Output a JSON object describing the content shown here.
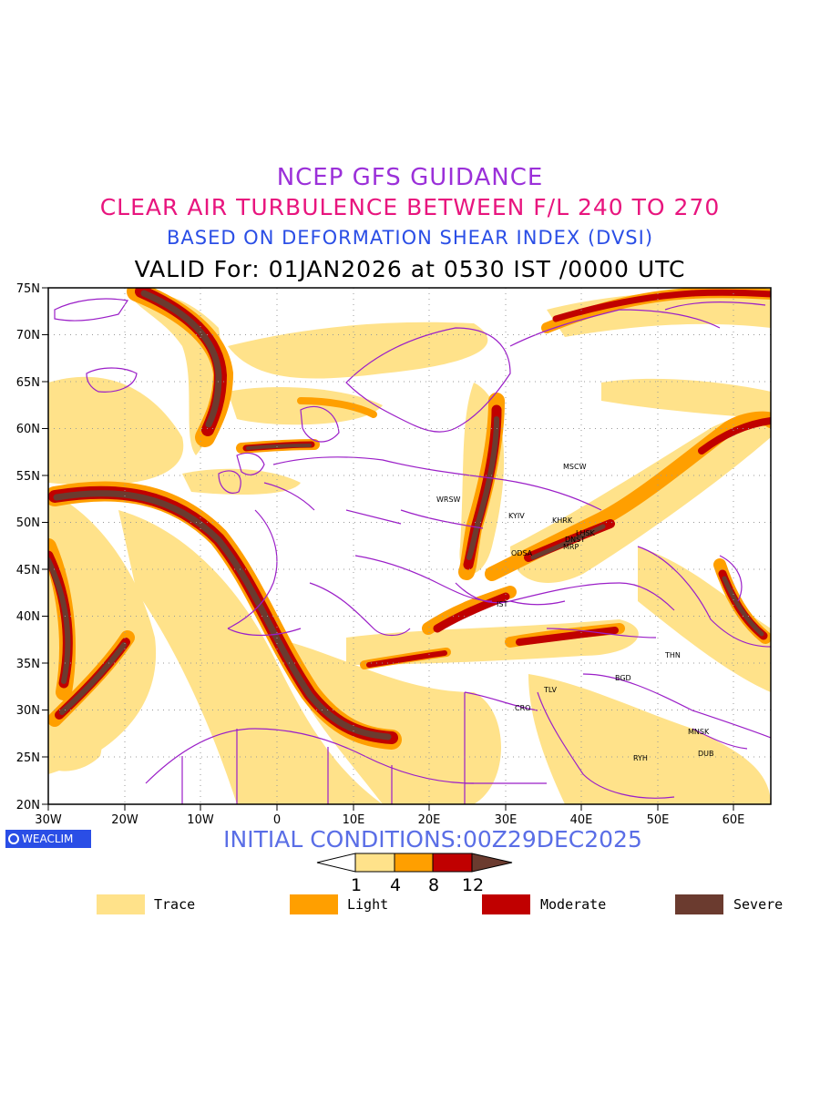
{
  "titles": {
    "line1": "NCEP GFS GUIDANCE",
    "line2": "CLEAR AIR TURBULENCE BETWEEN F/L 240 TO 270",
    "line3": "BASED ON DEFORMATION SHEAR INDEX (DVSI)",
    "line4": "VALID For: 01JAN2026 at 0530 IST /0000 UTC"
  },
  "map": {
    "lat_labels": [
      "75N",
      "70N",
      "65N",
      "60N",
      "55N",
      "50N",
      "45N",
      "40N",
      "35N",
      "30N",
      "25N",
      "20N"
    ],
    "lon_labels": [
      "30W",
      "20W",
      "10W",
      "0",
      "10E",
      "20E",
      "30E",
      "40E",
      "50E",
      "60E"
    ],
    "cities": [
      {
        "name": "MSCW"
      },
      {
        "name": "WRSW"
      },
      {
        "name": "KYIV"
      },
      {
        "name": "KHRK"
      },
      {
        "name": "LHSK"
      },
      {
        "name": "DNST"
      },
      {
        "name": "MRP"
      },
      {
        "name": "ODSA"
      },
      {
        "name": "IST"
      },
      {
        "name": "THN"
      },
      {
        "name": "BGD"
      },
      {
        "name": "TLV"
      },
      {
        "name": "CRO"
      },
      {
        "name": "MNSK"
      },
      {
        "name": "DUB"
      },
      {
        "name": "RYH"
      }
    ],
    "colors": {
      "trace": "#ffe28a",
      "light": "#ff9f00",
      "moderate": "#c00000",
      "severe": "#6b3b2f",
      "borders": "#9b1fc8"
    }
  },
  "branding": {
    "label": "WEACLIM",
    "icon": "circle-logo-icon"
  },
  "initial_conditions": "INITIAL CONDITIONS:00Z29DEC2025",
  "colorbar": {
    "ticks": [
      "1",
      "4",
      "8",
      "12"
    ]
  },
  "legend": [
    {
      "label": "Trace",
      "color": "#ffe28a"
    },
    {
      "label": "Light",
      "color": "#ff9f00"
    },
    {
      "label": "Moderate",
      "color": "#c00000"
    },
    {
      "label": "Severe",
      "color": "#6b3b2f"
    }
  ]
}
